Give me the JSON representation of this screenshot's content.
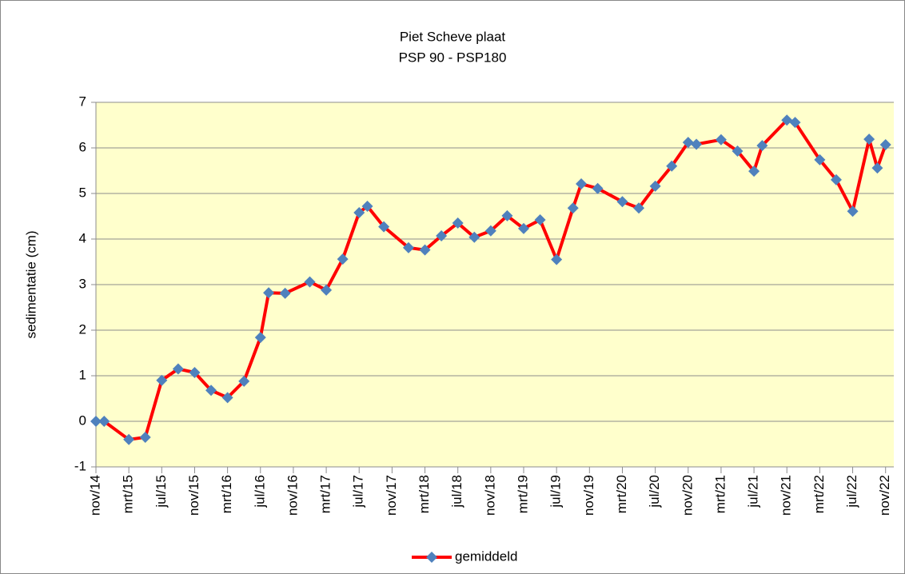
{
  "chart_data": {
    "type": "line",
    "title": "Piet Scheve plaat",
    "subtitle": "PSP 90 - PSP180",
    "y_label": "sedimentatie (cm)",
    "x": [
      "2014-11",
      "2014-12",
      "2015-03",
      "2015-05",
      "2015-07",
      "2015-09",
      "2015-11",
      "2016-01",
      "2016-03",
      "2016-05",
      "2016-07",
      "2016-08",
      "2016-10",
      "2017-01",
      "2017-03",
      "2017-05",
      "2017-07",
      "2017-08",
      "2017-10",
      "2018-01",
      "2018-03",
      "2018-05",
      "2018-07",
      "2018-09",
      "2018-11",
      "2019-01",
      "2019-03",
      "2019-05",
      "2019-07",
      "2019-09",
      "2019-10",
      "2019-12",
      "2020-03",
      "2020-05",
      "2020-07",
      "2020-09",
      "2020-11",
      "2020-12",
      "2021-03",
      "2021-05",
      "2021-07",
      "2021-08",
      "2021-11",
      "2021-12",
      "2022-03",
      "2022-05",
      "2022-07",
      "2022-09",
      "2022-10",
      "2022-11"
    ],
    "series": [
      {
        "name": "gemiddeld",
        "color": "#ff0000",
        "marker_color": "#4f81bd",
        "values": [
          0.0,
          0.0,
          -0.4,
          -0.35,
          0.9,
          1.15,
          1.07,
          0.68,
          0.52,
          0.88,
          1.84,
          2.82,
          2.81,
          3.06,
          2.88,
          3.56,
          4.58,
          4.72,
          4.27,
          3.81,
          3.76,
          4.07,
          4.35,
          4.04,
          4.18,
          4.51,
          4.23,
          4.42,
          3.55,
          4.68,
          5.21,
          5.11,
          4.82,
          4.68,
          5.16,
          5.6,
          6.12,
          6.08,
          6.18,
          5.93,
          5.49,
          6.05,
          6.61,
          6.56,
          5.74,
          5.3,
          4.61,
          6.19,
          5.56,
          6.07
        ]
      }
    ],
    "xlim": [
      "2014-11",
      "2022-12"
    ],
    "xticks": [
      {
        "value": "2014-11",
        "label": "nov/14"
      },
      {
        "value": "2015-03",
        "label": "mrt/15"
      },
      {
        "value": "2015-07",
        "label": "jul/15"
      },
      {
        "value": "2015-11",
        "label": "nov/15"
      },
      {
        "value": "2016-03",
        "label": "mrt/16"
      },
      {
        "value": "2016-07",
        "label": "jul/16"
      },
      {
        "value": "2016-11",
        "label": "nov/16"
      },
      {
        "value": "2017-03",
        "label": "mrt/17"
      },
      {
        "value": "2017-07",
        "label": "jul/17"
      },
      {
        "value": "2017-11",
        "label": "nov/17"
      },
      {
        "value": "2018-03",
        "label": "mrt/18"
      },
      {
        "value": "2018-07",
        "label": "jul/18"
      },
      {
        "value": "2018-11",
        "label": "nov/18"
      },
      {
        "value": "2019-03",
        "label": "mrt/19"
      },
      {
        "value": "2019-07",
        "label": "jul/19"
      },
      {
        "value": "2019-11",
        "label": "nov/19"
      },
      {
        "value": "2020-03",
        "label": "mrt/20"
      },
      {
        "value": "2020-07",
        "label": "jul/20"
      },
      {
        "value": "2020-11",
        "label": "nov/20"
      },
      {
        "value": "2021-03",
        "label": "mrt/21"
      },
      {
        "value": "2021-07",
        "label": "jul/21"
      },
      {
        "value": "2021-11",
        "label": "nov/21"
      },
      {
        "value": "2022-03",
        "label": "mrt/22"
      },
      {
        "value": "2022-07",
        "label": "jul/22"
      },
      {
        "value": "2022-11",
        "label": "nov/22"
      }
    ],
    "ylim": [
      -1,
      7
    ],
    "yticks": [
      -1,
      0,
      1,
      2,
      3,
      4,
      5,
      6,
      7
    ],
    "grid": true,
    "legend": "bottom",
    "plot_background": "#ffffcc"
  }
}
